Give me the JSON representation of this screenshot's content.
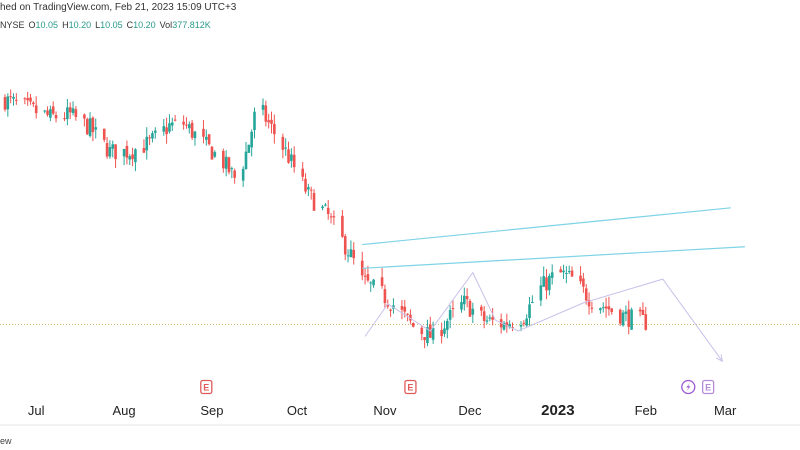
{
  "header": {
    "published_line": "hed on TradingView.com, Feb 21, 2023 15:09 UTC+3",
    "exchange": "NYSE",
    "open_label": "O",
    "open": "10.05",
    "high_label": "H",
    "high": "10.20",
    "low_label": "L",
    "low": "10.05",
    "close_label": "C",
    "close": "10.20",
    "vol_label": "Vol",
    "vol": "377.812K"
  },
  "footer": {
    "text": "ew"
  },
  "colors": {
    "up": "#26a69a",
    "down": "#ef5350",
    "channel": "#7fd3e6",
    "pattern": "#c9c0ea",
    "price_line": "#c8b86a",
    "event_earnings": "#e05a5a",
    "event_dividend": "#9b59d0",
    "event_future": "#b48cd8"
  },
  "icons": {
    "earnings": "earnings-marker-icon",
    "dividend": "dividend-bolt-icon"
  },
  "chart_data": {
    "type": "candlestick",
    "title": "",
    "x_ticks": [
      {
        "label": "Jul",
        "date": "2022-07-01"
      },
      {
        "label": "Aug",
        "date": "2022-08-01"
      },
      {
        "label": "Sep",
        "date": "2022-09-01"
      },
      {
        "label": "Oct",
        "date": "2022-10-01"
      },
      {
        "label": "Nov",
        "date": "2022-11-01"
      },
      {
        "label": "Dec",
        "date": "2022-12-01"
      },
      {
        "label": "2023",
        "date": "2023-01-01",
        "bold": true
      },
      {
        "label": "Feb",
        "date": "2023-02-01"
      },
      {
        "label": "Mar",
        "date": "2023-03-01"
      }
    ],
    "date_range": [
      "2022-06-20",
      "2023-03-08"
    ],
    "y_range": [
      8.0,
      23.0
    ],
    "last_close": 10.2,
    "price_path": [
      [
        "2022-06-20",
        20.6
      ],
      [
        "2022-06-28",
        20.2
      ],
      [
        "2022-07-06",
        19.8
      ],
      [
        "2022-07-13",
        19.9
      ],
      [
        "2022-07-20",
        19.3
      ],
      [
        "2022-07-27",
        18.2
      ],
      [
        "2022-08-03",
        18.2
      ],
      [
        "2022-08-10",
        18.6
      ],
      [
        "2022-08-17",
        19.4
      ],
      [
        "2022-08-22",
        19.5
      ],
      [
        "2022-08-29",
        18.6
      ],
      [
        "2022-09-05",
        17.7
      ],
      [
        "2022-09-10",
        16.8
      ],
      [
        "2022-09-14",
        18.6
      ],
      [
        "2022-09-17",
        20.4
      ],
      [
        "2022-09-21",
        19.5
      ],
      [
        "2022-09-27",
        18.2
      ],
      [
        "2022-10-05",
        16.2
      ],
      [
        "2022-10-12",
        15.2
      ],
      [
        "2022-10-20",
        13.4
      ],
      [
        "2022-10-24",
        12.2
      ],
      [
        "2022-10-30",
        11.7
      ],
      [
        "2022-11-05",
        11.0
      ],
      [
        "2022-11-11",
        10.1
      ],
      [
        "2022-11-18",
        9.6
      ],
      [
        "2022-11-23",
        10.4
      ],
      [
        "2022-11-29",
        11.2
      ],
      [
        "2022-12-06",
        10.4
      ],
      [
        "2022-12-13",
        10.2
      ],
      [
        "2022-12-20",
        10.6
      ],
      [
        "2022-12-26",
        11.9
      ],
      [
        "2023-01-01",
        12.6
      ],
      [
        "2023-01-06",
        12.3
      ],
      [
        "2023-01-13",
        11.3
      ],
      [
        "2023-01-18",
        11.0
      ],
      [
        "2023-01-24",
        10.6
      ],
      [
        "2023-02-01",
        10.3
      ]
    ],
    "candles_per_day": 1,
    "channel_lines": [
      {
        "name": "channel-top",
        "from": [
          "2022-10-24",
          13.9
        ],
        "to": [
          "2023-03-03",
          15.6
        ]
      },
      {
        "name": "channel-bottom",
        "from": [
          "2022-10-24",
          12.8
        ],
        "to": [
          "2023-03-08",
          13.8
        ]
      }
    ],
    "pattern_path": [
      [
        "2022-10-25",
        9.65
      ],
      [
        "2022-11-02",
        11.15
      ],
      [
        "2022-11-17",
        9.9
      ],
      [
        "2022-12-02",
        12.6
      ],
      [
        "2022-12-10",
        10.4
      ],
      [
        "2022-12-18",
        9.9
      ],
      [
        "2023-01-10",
        11.2
      ],
      [
        "2023-02-07",
        12.3
      ],
      [
        "2023-02-28",
        8.5
      ]
    ],
    "events": [
      {
        "type": "earnings",
        "label": "E",
        "date": "2022-08-30"
      },
      {
        "type": "earnings",
        "label": "E",
        "date": "2022-11-10"
      },
      {
        "type": "dividend",
        "label": "",
        "date": "2023-02-16"
      },
      {
        "type": "earnings-upcoming",
        "label": "E",
        "date": "2023-02-23"
      }
    ]
  }
}
